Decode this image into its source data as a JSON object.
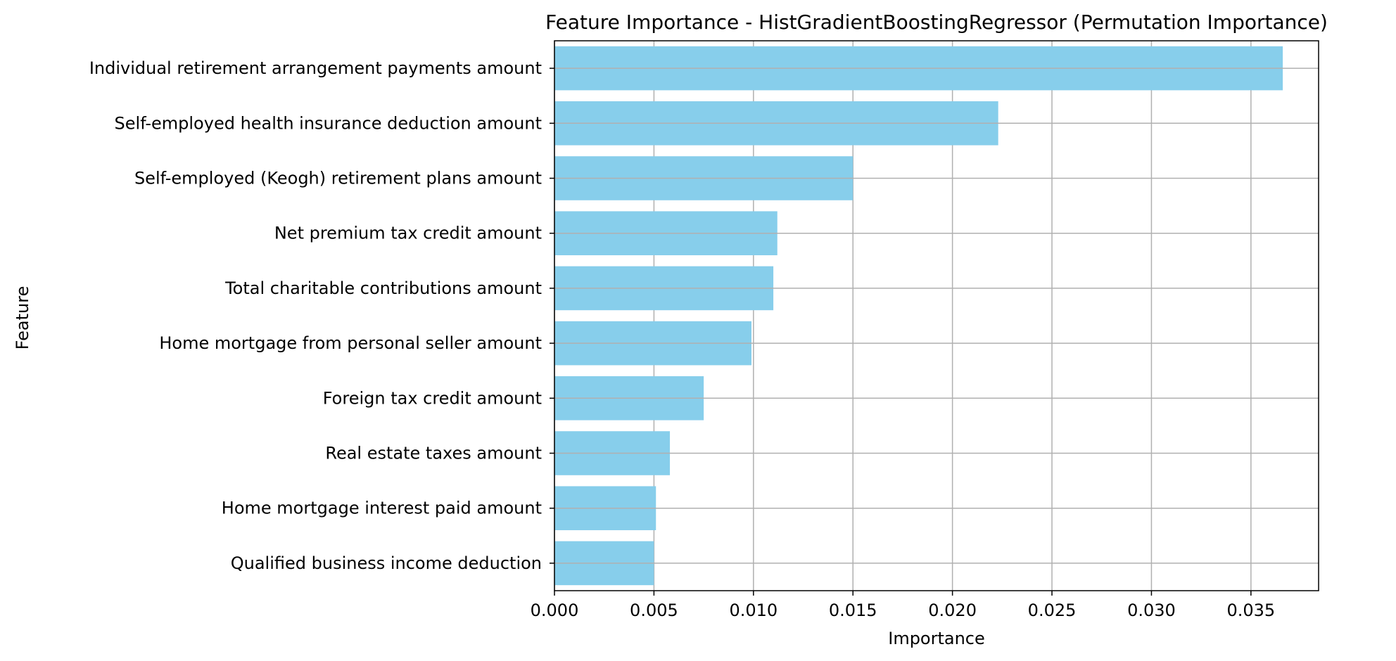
{
  "chart_data": {
    "type": "bar",
    "orientation": "horizontal",
    "title": "Feature Importance - HistGradientBoostingRegressor (Permutation Importance)",
    "xlabel": "Importance",
    "ylabel": "Feature",
    "xlim": [
      0,
      0.0384
    ],
    "x_ticks": [
      "0.000",
      "0.005",
      "0.010",
      "0.015",
      "0.020",
      "0.025",
      "0.030",
      "0.035"
    ],
    "grid": true,
    "bar_color": "#87CEEB",
    "grid_color": "#b0b0b0",
    "categories": [
      "Individual retirement arrangement payments amount",
      "Self-employed health insurance deduction amount",
      "Self-employed (Keogh) retirement plans amount",
      "Net premium tax credit amount",
      "Total charitable contributions amount",
      "Home mortgage from personal seller amount",
      "Foreign tax credit amount",
      "Real estate taxes amount",
      "Home mortgage interest paid amount",
      "Qualified business income deduction"
    ],
    "values": [
      0.0366,
      0.0223,
      0.015,
      0.0112,
      0.011,
      0.0099,
      0.0075,
      0.0058,
      0.0051,
      0.005
    ]
  }
}
